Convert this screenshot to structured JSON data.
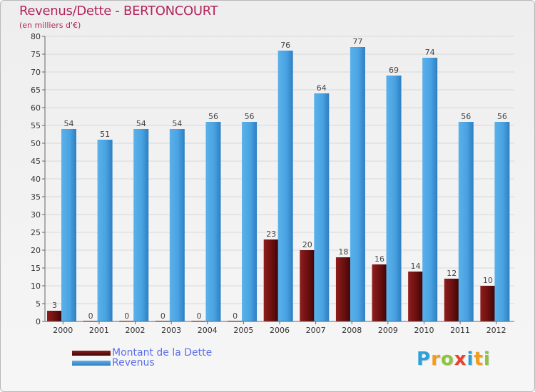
{
  "title": "Revenus/Dette - BERTONCOURT",
  "subtitle": "(en milliers d'€)",
  "brand": {
    "text": "Proxiti",
    "letters": [
      {
        "ch": "P",
        "color": "#2aa1d8"
      },
      {
        "ch": "r",
        "color": "#f39c1a"
      },
      {
        "ch": "o",
        "color": "#8bc53f"
      },
      {
        "ch": "x",
        "color": "#e8412c"
      },
      {
        "ch": "i",
        "color": "#2aa1d8"
      },
      {
        "ch": "t",
        "color": "#f39c1a"
      },
      {
        "ch": "i",
        "color": "#8bc53f"
      }
    ]
  },
  "legend": {
    "dette_label": "Montant de la Dette",
    "revenus_label": "Revenus"
  },
  "colors": {
    "dette": "#7a1414",
    "revenus": "#4ea7e6",
    "grid": "#d8d8d8",
    "axis": "#666666"
  },
  "chart_data": {
    "type": "bar",
    "title": "Revenus/Dette - BERTONCOURT",
    "ylabel": "(en milliers d'€)",
    "xlabel": "",
    "ylim": [
      0,
      80
    ],
    "ytick_step": 5,
    "grid": true,
    "categories": [
      "2000",
      "2001",
      "2002",
      "2003",
      "2004",
      "2005",
      "2006",
      "2007",
      "2008",
      "2009",
      "2010",
      "2011",
      "2012"
    ],
    "series": [
      {
        "name": "Montant de la Dette",
        "values": [
          3,
          0,
          0,
          0,
          0,
          0,
          23,
          20,
          18,
          16,
          14,
          12,
          10
        ]
      },
      {
        "name": "Revenus",
        "values": [
          54,
          51,
          54,
          54,
          56,
          56,
          76,
          64,
          77,
          69,
          74,
          56,
          56
        ]
      }
    ]
  }
}
